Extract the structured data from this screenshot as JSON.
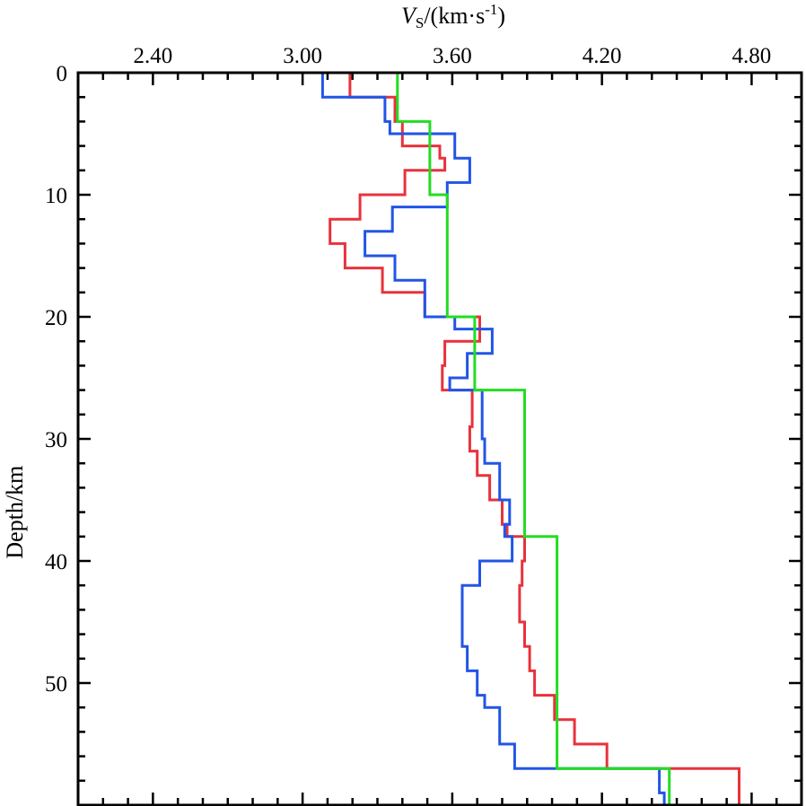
{
  "chart_data": {
    "type": "line",
    "title": "",
    "xlabel": {
      "main": "V",
      "subscript": "S",
      "unit_prefix": "/(km·s",
      "exponent": "-1",
      "unit_suffix": ")"
    },
    "ylabel": "Depth/km",
    "xlim": [
      2.1,
      5.0
    ],
    "ylim": [
      0,
      60
    ],
    "x_ticks": [
      2.4,
      3.0,
      3.6,
      4.2,
      4.8
    ],
    "x_tick_labels": [
      "2.40",
      "3.00",
      "3.60",
      "4.20",
      "4.80"
    ],
    "x_minor_step": 0.1,
    "y_ticks": [
      0,
      10,
      20,
      30,
      40,
      50
    ],
    "y_tick_labels": [
      "0",
      "10",
      "20",
      "30",
      "40",
      "50"
    ],
    "y_minor_step": 2,
    "grid": false,
    "series": [
      {
        "name": "red",
        "color": "#e8323c",
        "points": [
          [
            3.19,
            0
          ],
          [
            3.19,
            2
          ],
          [
            3.37,
            2
          ],
          [
            3.37,
            4
          ],
          [
            3.4,
            4
          ],
          [
            3.4,
            6
          ],
          [
            3.55,
            6
          ],
          [
            3.55,
            7
          ],
          [
            3.57,
            7
          ],
          [
            3.57,
            8
          ],
          [
            3.41,
            8
          ],
          [
            3.41,
            10
          ],
          [
            3.23,
            10
          ],
          [
            3.23,
            12
          ],
          [
            3.11,
            12
          ],
          [
            3.11,
            14
          ],
          [
            3.17,
            14
          ],
          [
            3.17,
            16
          ],
          [
            3.32,
            16
          ],
          [
            3.32,
            18
          ],
          [
            3.49,
            18
          ],
          [
            3.49,
            20
          ],
          [
            3.71,
            20
          ],
          [
            3.71,
            22
          ],
          [
            3.57,
            22
          ],
          [
            3.57,
            24
          ],
          [
            3.56,
            24
          ],
          [
            3.56,
            26
          ],
          [
            3.68,
            26
          ],
          [
            3.68,
            29
          ],
          [
            3.67,
            29
          ],
          [
            3.67,
            31
          ],
          [
            3.7,
            31
          ],
          [
            3.7,
            33
          ],
          [
            3.75,
            33
          ],
          [
            3.75,
            35
          ],
          [
            3.8,
            35
          ],
          [
            3.8,
            37
          ],
          [
            3.82,
            37
          ],
          [
            3.82,
            38
          ],
          [
            3.89,
            38
          ],
          [
            3.89,
            40
          ],
          [
            3.88,
            40
          ],
          [
            3.88,
            42
          ],
          [
            3.87,
            42
          ],
          [
            3.87,
            45
          ],
          [
            3.89,
            45
          ],
          [
            3.89,
            47
          ],
          [
            3.91,
            47
          ],
          [
            3.91,
            49
          ],
          [
            3.93,
            49
          ],
          [
            3.93,
            51
          ],
          [
            4.01,
            51
          ],
          [
            4.01,
            53
          ],
          [
            4.09,
            53
          ],
          [
            4.09,
            55
          ],
          [
            4.22,
            55
          ],
          [
            4.22,
            57
          ],
          [
            4.75,
            57
          ],
          [
            4.75,
            60
          ]
        ]
      },
      {
        "name": "blue",
        "color": "#2255e6",
        "points": [
          [
            3.08,
            0
          ],
          [
            3.08,
            2
          ],
          [
            3.33,
            2
          ],
          [
            3.33,
            4
          ],
          [
            3.35,
            4
          ],
          [
            3.35,
            5
          ],
          [
            3.61,
            5
          ],
          [
            3.61,
            7
          ],
          [
            3.67,
            7
          ],
          [
            3.67,
            9
          ],
          [
            3.58,
            9
          ],
          [
            3.58,
            11
          ],
          [
            3.36,
            11
          ],
          [
            3.36,
            13
          ],
          [
            3.25,
            13
          ],
          [
            3.25,
            15
          ],
          [
            3.37,
            15
          ],
          [
            3.37,
            17
          ],
          [
            3.49,
            17
          ],
          [
            3.49,
            20
          ],
          [
            3.61,
            20
          ],
          [
            3.61,
            21
          ],
          [
            3.76,
            21
          ],
          [
            3.76,
            23
          ],
          [
            3.66,
            23
          ],
          [
            3.66,
            25
          ],
          [
            3.59,
            25
          ],
          [
            3.59,
            26
          ],
          [
            3.72,
            26
          ],
          [
            3.72,
            30
          ],
          [
            3.73,
            30
          ],
          [
            3.73,
            32
          ],
          [
            3.79,
            32
          ],
          [
            3.79,
            35
          ],
          [
            3.83,
            35
          ],
          [
            3.83,
            37
          ],
          [
            3.81,
            37
          ],
          [
            3.81,
            38
          ],
          [
            3.84,
            38
          ],
          [
            3.84,
            40
          ],
          [
            3.71,
            40
          ],
          [
            3.71,
            42
          ],
          [
            3.64,
            42
          ],
          [
            3.64,
            47
          ],
          [
            3.66,
            47
          ],
          [
            3.66,
            49
          ],
          [
            3.7,
            49
          ],
          [
            3.7,
            51
          ],
          [
            3.73,
            51
          ],
          [
            3.73,
            52
          ],
          [
            3.79,
            52
          ],
          [
            3.79,
            55
          ],
          [
            3.85,
            55
          ],
          [
            3.85,
            57
          ],
          [
            4.43,
            57
          ],
          [
            4.43,
            59
          ],
          [
            4.45,
            59
          ],
          [
            4.45,
            60
          ]
        ]
      },
      {
        "name": "green",
        "color": "#22dd22",
        "points": [
          [
            3.38,
            0
          ],
          [
            3.38,
            4
          ],
          [
            3.51,
            4
          ],
          [
            3.51,
            10
          ],
          [
            3.58,
            10
          ],
          [
            3.58,
            20
          ],
          [
            3.69,
            20
          ],
          [
            3.69,
            26
          ],
          [
            3.89,
            26
          ],
          [
            3.89,
            38
          ],
          [
            4.02,
            38
          ],
          [
            4.02,
            57
          ],
          [
            4.47,
            57
          ],
          [
            4.47,
            60
          ]
        ]
      }
    ]
  }
}
